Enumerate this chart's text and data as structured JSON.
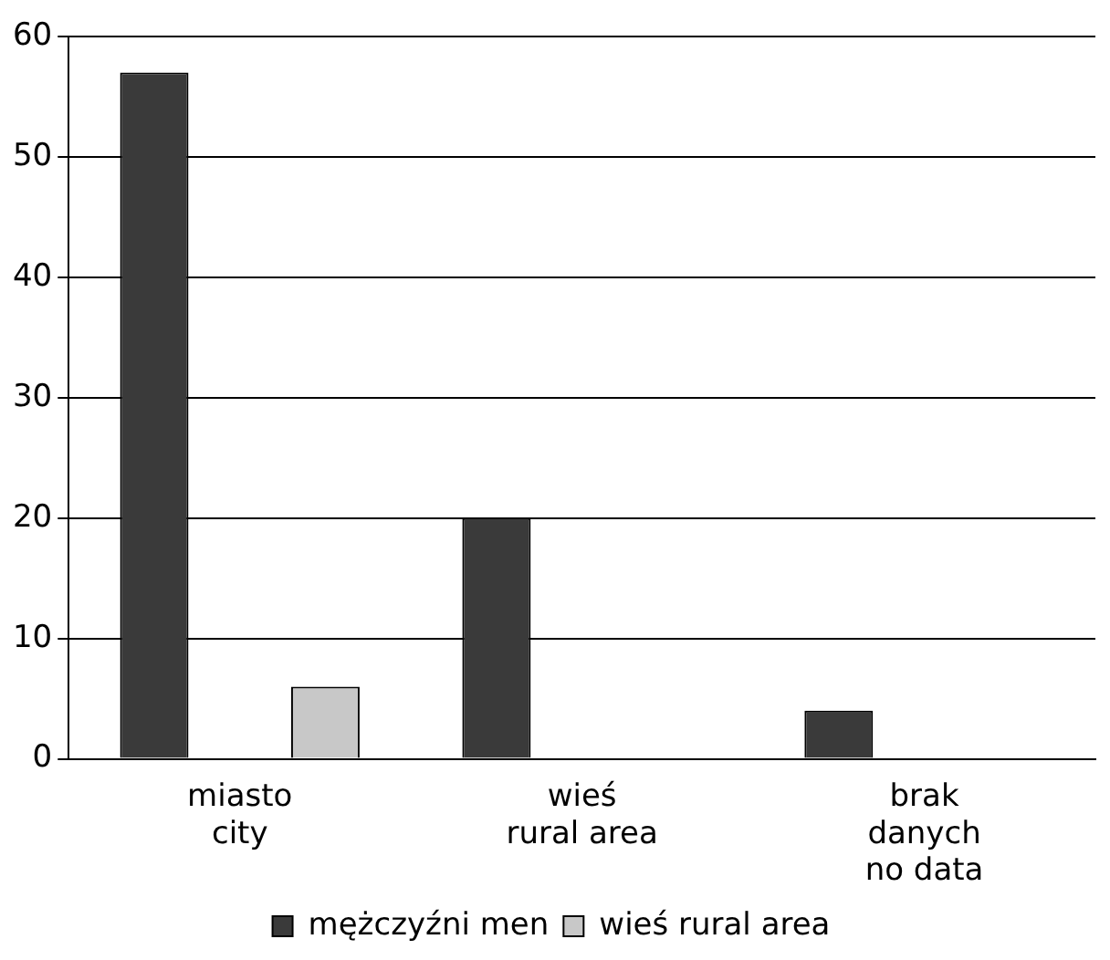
{
  "chart_data": {
    "type": "bar",
    "categories": [
      "miasto\ncity",
      "wieś\nrural area",
      "brak\ndanych\nno data"
    ],
    "series": [
      {
        "name": "mężczyźni\nmen",
        "color": "#3a3a3a",
        "values": [
          57,
          20,
          4
        ]
      },
      {
        "name": "wieś\nrural area",
        "color": "#c8c8c8",
        "values": [
          6,
          0,
          0
        ]
      }
    ],
    "ylim": [
      0,
      60
    ],
    "yticks": [
      0,
      10,
      20,
      30,
      40,
      50,
      60
    ],
    "grid": "y",
    "legend": "bottom"
  }
}
